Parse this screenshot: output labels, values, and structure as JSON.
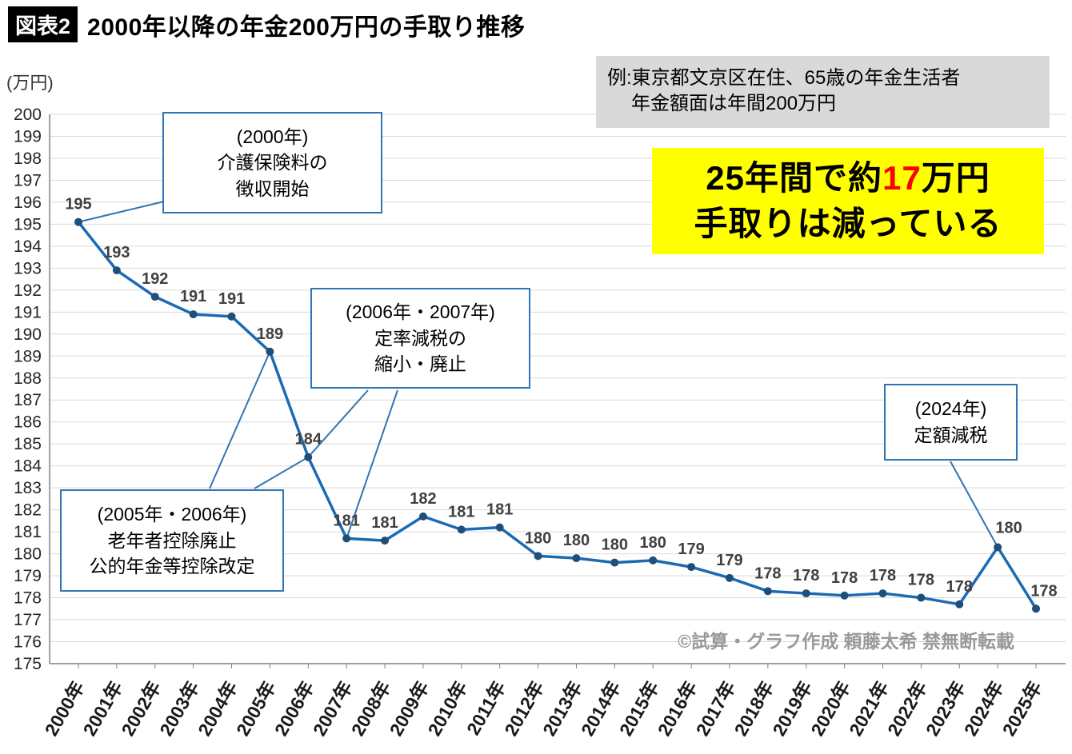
{
  "header": {
    "badge": "図表2",
    "title": "2000年以降の年金200万円の手取り推移"
  },
  "note_box": {
    "line1": "例:東京都文京区在住、65歳の年金生活者",
    "line2": "年金額面は年間200万円"
  },
  "highlight": {
    "line1_pre": "25年間で約",
    "line1_red": "17",
    "line1_post": "万円",
    "line2": "手取りは減っている"
  },
  "y_axis_unit": "(万円)",
  "credit": "©試算・グラフ作成 頼藤太希 禁無断転載",
  "annotations": [
    {
      "target": "2000年",
      "lines": [
        "(2000年)",
        "介護保険料の",
        "徴収開始"
      ]
    },
    {
      "target": "2006年・2007年",
      "lines": [
        "(2006年・2007年)",
        "定率減税の",
        "縮小・廃止"
      ]
    },
    {
      "target": "2005年・2006年",
      "lines": [
        "(2005年・2006年)",
        "老年者控除廃止",
        "公的年金等控除改定"
      ]
    },
    {
      "target": "2024年",
      "lines": [
        "(2024年)",
        "定額減税"
      ]
    }
  ],
  "chart_data": {
    "type": "line",
    "title": "2000年以降の年金200万円の手取り推移",
    "xlabel": "",
    "ylabel": "(万円)",
    "ylim": [
      175,
      200
    ],
    "y_tick_step": 1,
    "grid": true,
    "legend": "none",
    "line_color": "#1B6AB3",
    "point_color": "#1F4E79",
    "categories": [
      "2000年",
      "2001年",
      "2002年",
      "2003年",
      "2004年",
      "2005年",
      "2006年",
      "2007年",
      "2008年",
      "2009年",
      "2010年",
      "2011年",
      "2012年",
      "2013年",
      "2014年",
      "2015年",
      "2016年",
      "2017年",
      "2018年",
      "2019年",
      "2020年",
      "2021年",
      "2022年",
      "2023年",
      "2024年",
      "2025年"
    ],
    "values": [
      195.1,
      192.9,
      191.7,
      190.9,
      190.8,
      189.2,
      184.4,
      180.7,
      180.6,
      181.7,
      181.1,
      181.2,
      179.9,
      179.8,
      179.6,
      179.7,
      179.4,
      178.9,
      178.3,
      178.2,
      178.1,
      178.2,
      178.0,
      177.7,
      180.3,
      177.5
    ],
    "labels": [
      "195",
      "193",
      "192",
      "191",
      "191",
      "189",
      "184",
      "181",
      "181",
      "182",
      "181",
      "181",
      "180",
      "180",
      "180",
      "180",
      "179",
      "179",
      "178",
      "178",
      "178",
      "178",
      "178",
      "178",
      "180",
      "178"
    ]
  }
}
